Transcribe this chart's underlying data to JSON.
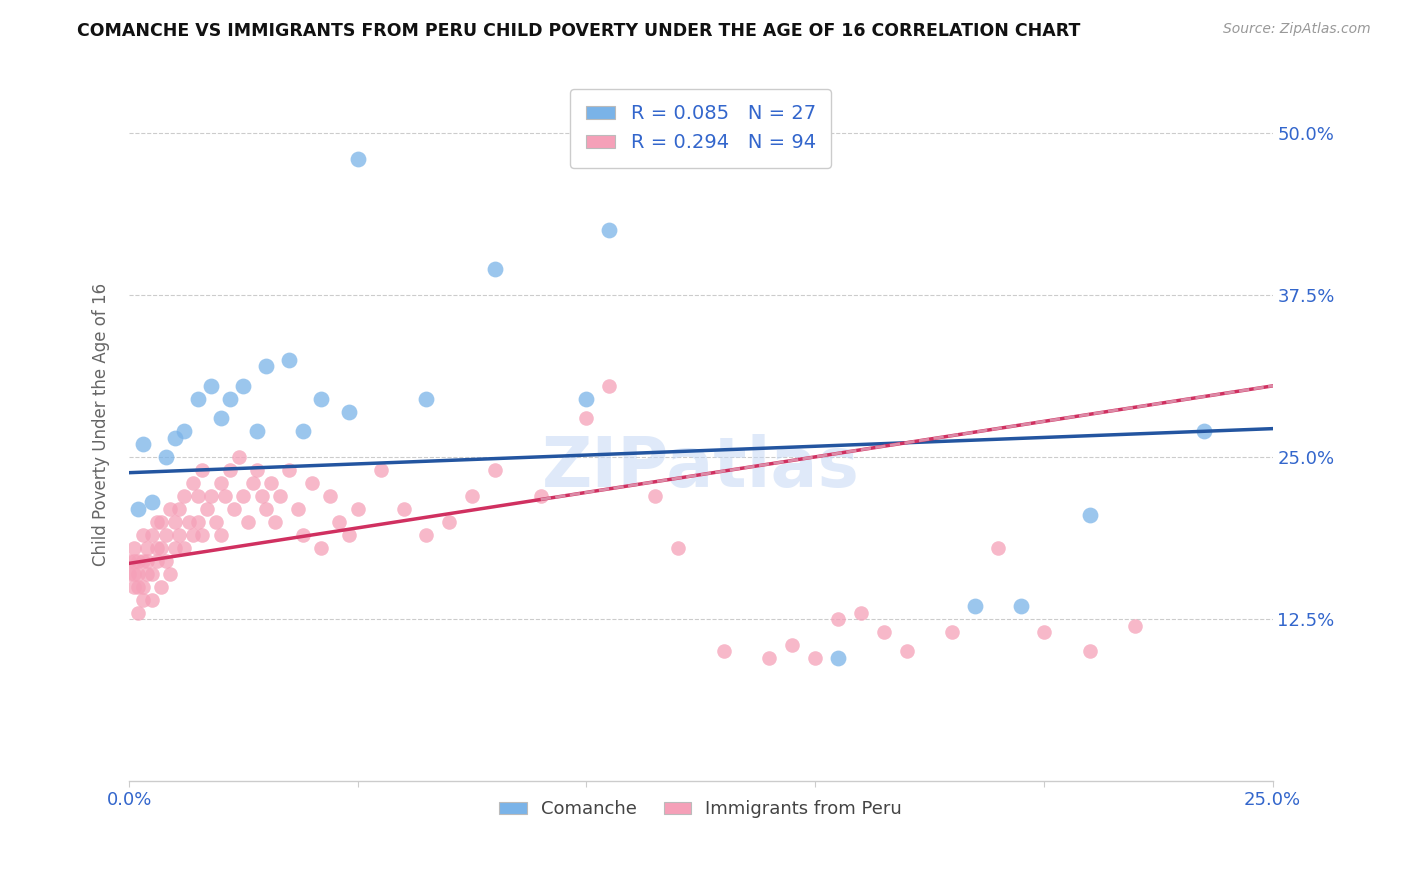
{
  "title": "COMANCHE VS IMMIGRANTS FROM PERU CHILD POVERTY UNDER THE AGE OF 16 CORRELATION CHART",
  "source": "Source: ZipAtlas.com",
  "xlabel_comanche": "Comanche",
  "xlabel_peru": "Immigrants from Peru",
  "ylabel": "Child Poverty Under the Age of 16",
  "xlim": [
    0,
    0.25
  ],
  "ylim": [
    0,
    0.55
  ],
  "xtick_positions": [
    0.0,
    0.05,
    0.1,
    0.15,
    0.2,
    0.25
  ],
  "xtick_labels": [
    "0.0%",
    "",
    "",
    "",
    "",
    "25.0%"
  ],
  "ytick_labels": [
    "12.5%",
    "25.0%",
    "37.5%",
    "50.0%"
  ],
  "yticks": [
    0.125,
    0.25,
    0.375,
    0.5
  ],
  "R_comanche": 0.085,
  "N_comanche": 27,
  "R_peru": 0.294,
  "N_peru": 94,
  "color_comanche": "#7ab3e8",
  "color_peru": "#f5a0b8",
  "color_trend_comanche": "#2355a0",
  "color_trend_peru": "#d03060",
  "color_dashed": "#e0a0b8",
  "watermark": "ZIPatlas",
  "blue_line_y0": 0.238,
  "blue_line_y1": 0.272,
  "pink_line_y0": 0.168,
  "pink_line_y1": 0.305,
  "comanche_x": [
    0.002,
    0.003,
    0.005,
    0.008,
    0.01,
    0.012,
    0.015,
    0.018,
    0.02,
    0.022,
    0.025,
    0.028,
    0.03,
    0.035,
    0.038,
    0.042,
    0.048,
    0.05,
    0.065,
    0.08,
    0.1,
    0.105,
    0.155,
    0.185,
    0.195,
    0.21,
    0.235
  ],
  "comanche_y": [
    0.21,
    0.26,
    0.215,
    0.25,
    0.265,
    0.27,
    0.295,
    0.305,
    0.28,
    0.295,
    0.305,
    0.27,
    0.32,
    0.325,
    0.27,
    0.295,
    0.285,
    0.48,
    0.295,
    0.395,
    0.295,
    0.425,
    0.095,
    0.135,
    0.135,
    0.205,
    0.27
  ],
  "peru_x": [
    0.0,
    0.0,
    0.001,
    0.001,
    0.001,
    0.001,
    0.002,
    0.002,
    0.002,
    0.002,
    0.003,
    0.003,
    0.003,
    0.003,
    0.004,
    0.004,
    0.004,
    0.005,
    0.005,
    0.005,
    0.006,
    0.006,
    0.006,
    0.007,
    0.007,
    0.007,
    0.008,
    0.008,
    0.009,
    0.009,
    0.01,
    0.01,
    0.011,
    0.011,
    0.012,
    0.012,
    0.013,
    0.014,
    0.014,
    0.015,
    0.015,
    0.016,
    0.016,
    0.017,
    0.018,
    0.019,
    0.02,
    0.02,
    0.021,
    0.022,
    0.023,
    0.024,
    0.025,
    0.026,
    0.027,
    0.028,
    0.029,
    0.03,
    0.031,
    0.032,
    0.033,
    0.035,
    0.037,
    0.038,
    0.04,
    0.042,
    0.044,
    0.046,
    0.048,
    0.05,
    0.055,
    0.06,
    0.065,
    0.07,
    0.075,
    0.08,
    0.09,
    0.1,
    0.105,
    0.115,
    0.12,
    0.13,
    0.14,
    0.145,
    0.15,
    0.155,
    0.16,
    0.165,
    0.17,
    0.18,
    0.19,
    0.2,
    0.21,
    0.22
  ],
  "peru_y": [
    0.16,
    0.17,
    0.15,
    0.16,
    0.17,
    0.18,
    0.13,
    0.15,
    0.16,
    0.17,
    0.14,
    0.15,
    0.17,
    0.19,
    0.16,
    0.17,
    0.18,
    0.14,
    0.16,
    0.19,
    0.17,
    0.18,
    0.2,
    0.15,
    0.18,
    0.2,
    0.17,
    0.19,
    0.16,
    0.21,
    0.18,
    0.2,
    0.19,
    0.21,
    0.18,
    0.22,
    0.2,
    0.19,
    0.23,
    0.2,
    0.22,
    0.19,
    0.24,
    0.21,
    0.22,
    0.2,
    0.19,
    0.23,
    0.22,
    0.24,
    0.21,
    0.25,
    0.22,
    0.2,
    0.23,
    0.24,
    0.22,
    0.21,
    0.23,
    0.2,
    0.22,
    0.24,
    0.21,
    0.19,
    0.23,
    0.18,
    0.22,
    0.2,
    0.19,
    0.21,
    0.24,
    0.21,
    0.19,
    0.2,
    0.22,
    0.24,
    0.22,
    0.28,
    0.305,
    0.22,
    0.18,
    0.1,
    0.095,
    0.105,
    0.095,
    0.125,
    0.13,
    0.115,
    0.1,
    0.115,
    0.18,
    0.115,
    0.1,
    0.12
  ]
}
